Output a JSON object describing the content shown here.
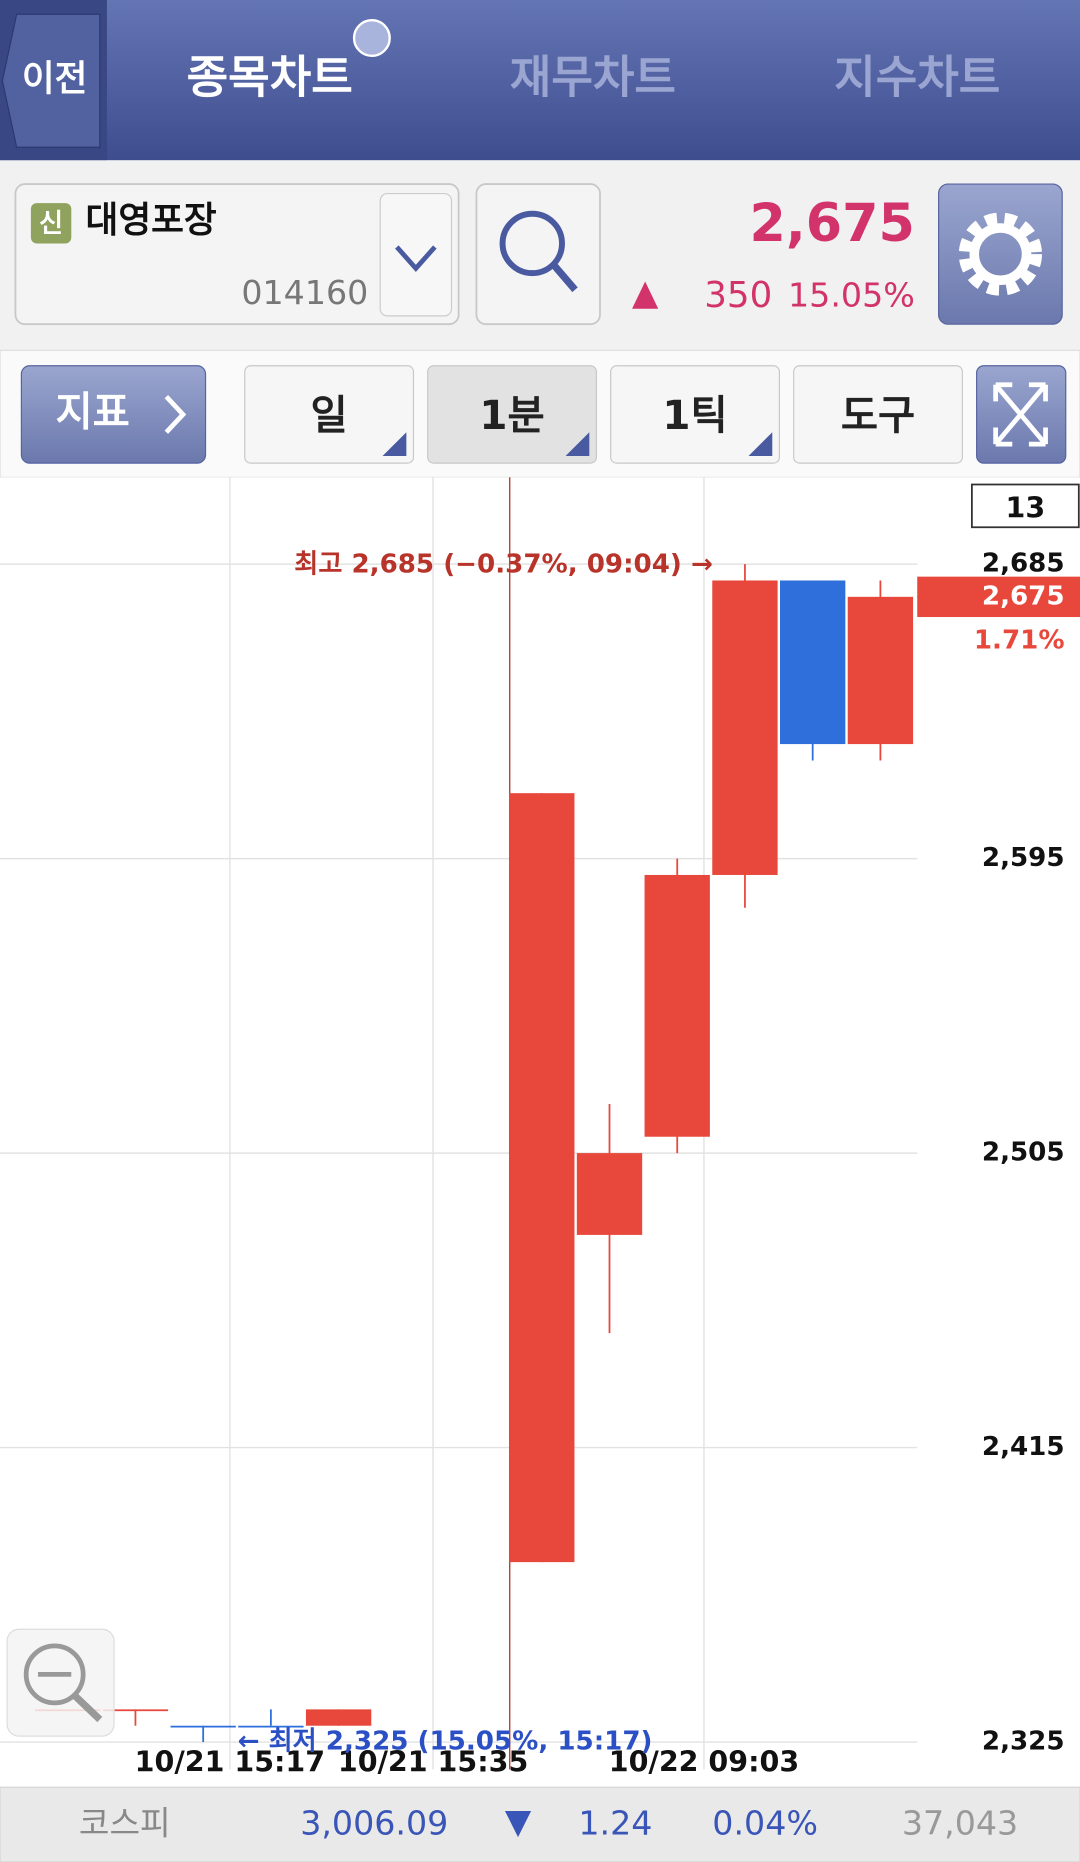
{
  "header": {
    "back": "이전",
    "tabs": [
      "종목차트",
      "재무차트",
      "지수차트"
    ]
  },
  "stock": {
    "badge": "신",
    "name": "대영포장",
    "code": "014160",
    "price": "2,675",
    "change": "350",
    "change_rate": "15.05%"
  },
  "toolbar": {
    "indicator": "지표",
    "buttons": [
      "일",
      "1분",
      "1틱",
      "도구"
    ]
  },
  "chart_data": {
    "type": "candlestick",
    "categories": [
      null,
      null,
      null,
      "10/21 15:17",
      null,
      null,
      "10/21 15:35",
      null,
      null,
      null,
      "10/22 09:03",
      null,
      null
    ],
    "open": [
      2335,
      2335,
      2330,
      2330,
      2330,
      null,
      null,
      2380,
      2480,
      2510,
      2590,
      2680,
      2630
    ],
    "high": [
      2335,
      2335,
      2330,
      2335,
      2335,
      null,
      null,
      2615,
      2520,
      2595,
      2685,
      2680,
      2680
    ],
    "low": [
      2335,
      2330,
      2325,
      2330,
      2330,
      null,
      null,
      2380,
      2450,
      2505,
      2580,
      2625,
      2625
    ],
    "close": [
      2335,
      2335,
      2330,
      2330,
      2335,
      null,
      null,
      2615,
      2505,
      2590,
      2680,
      2630,
      2675
    ],
    "up_color": "#e8483c",
    "down_color": "#2f6fdc",
    "ylim": [
      2311,
      2711
    ],
    "yticks": [
      {
        "value": 2325,
        "label": "2,325"
      },
      {
        "value": 2415,
        "label": "2,415"
      },
      {
        "value": 2505,
        "label": "2,505"
      },
      {
        "value": 2595,
        "label": "2,595"
      },
      {
        "value": 2685,
        "label": "2,685"
      }
    ],
    "grid": true,
    "count": 13,
    "last_price": {
      "value": 2675,
      "label": "2,675"
    },
    "last_change": "1.71%",
    "max_annotation": "최고 2,685 (−0.37%, 09:04) →",
    "min_annotation": "← 최저 2,325 (15.05%, 15:17)"
  },
  "footer": {
    "index_name": "코스피",
    "value": "3,006.09",
    "change": "1.24",
    "rate": "0.04%",
    "volume": "37,043"
  }
}
